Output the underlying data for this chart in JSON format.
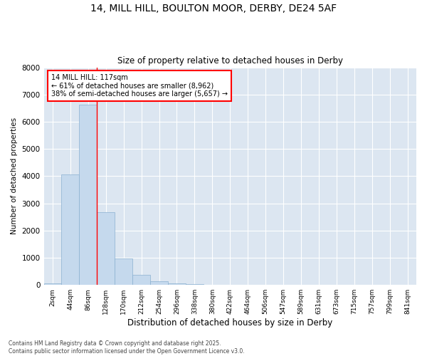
{
  "title1": "14, MILL HILL, BOULTON MOOR, DERBY, DE24 5AF",
  "title2": "Size of property relative to detached houses in Derby",
  "xlabel": "Distribution of detached houses by size in Derby",
  "ylabel": "Number of detached properties",
  "categories": [
    "2sqm",
    "44sqm",
    "86sqm",
    "128sqm",
    "170sqm",
    "212sqm",
    "254sqm",
    "296sqm",
    "338sqm",
    "380sqm",
    "422sqm",
    "464sqm",
    "506sqm",
    "547sqm",
    "589sqm",
    "631sqm",
    "673sqm",
    "715sqm",
    "757sqm",
    "799sqm",
    "841sqm"
  ],
  "values": [
    60,
    4050,
    6620,
    2680,
    970,
    360,
    135,
    65,
    35,
    0,
    0,
    0,
    0,
    0,
    0,
    0,
    0,
    0,
    0,
    0,
    0
  ],
  "bar_color": "#c5d9ed",
  "bar_edge_color": "#8ab0d0",
  "background_color": "#dce6f1",
  "annotation_title": "14 MILL HILL: 117sqm",
  "annotation_line1": "← 61% of detached houses are smaller (8,962)",
  "annotation_line2": "38% of semi-detached houses are larger (5,657) →",
  "ylim": [
    0,
    8000
  ],
  "yticks": [
    0,
    1000,
    2000,
    3000,
    4000,
    5000,
    6000,
    7000,
    8000
  ],
  "red_line_x": 2.5,
  "footer_line1": "Contains HM Land Registry data © Crown copyright and database right 2025.",
  "footer_line2": "Contains public sector information licensed under the Open Government Licence v3.0."
}
